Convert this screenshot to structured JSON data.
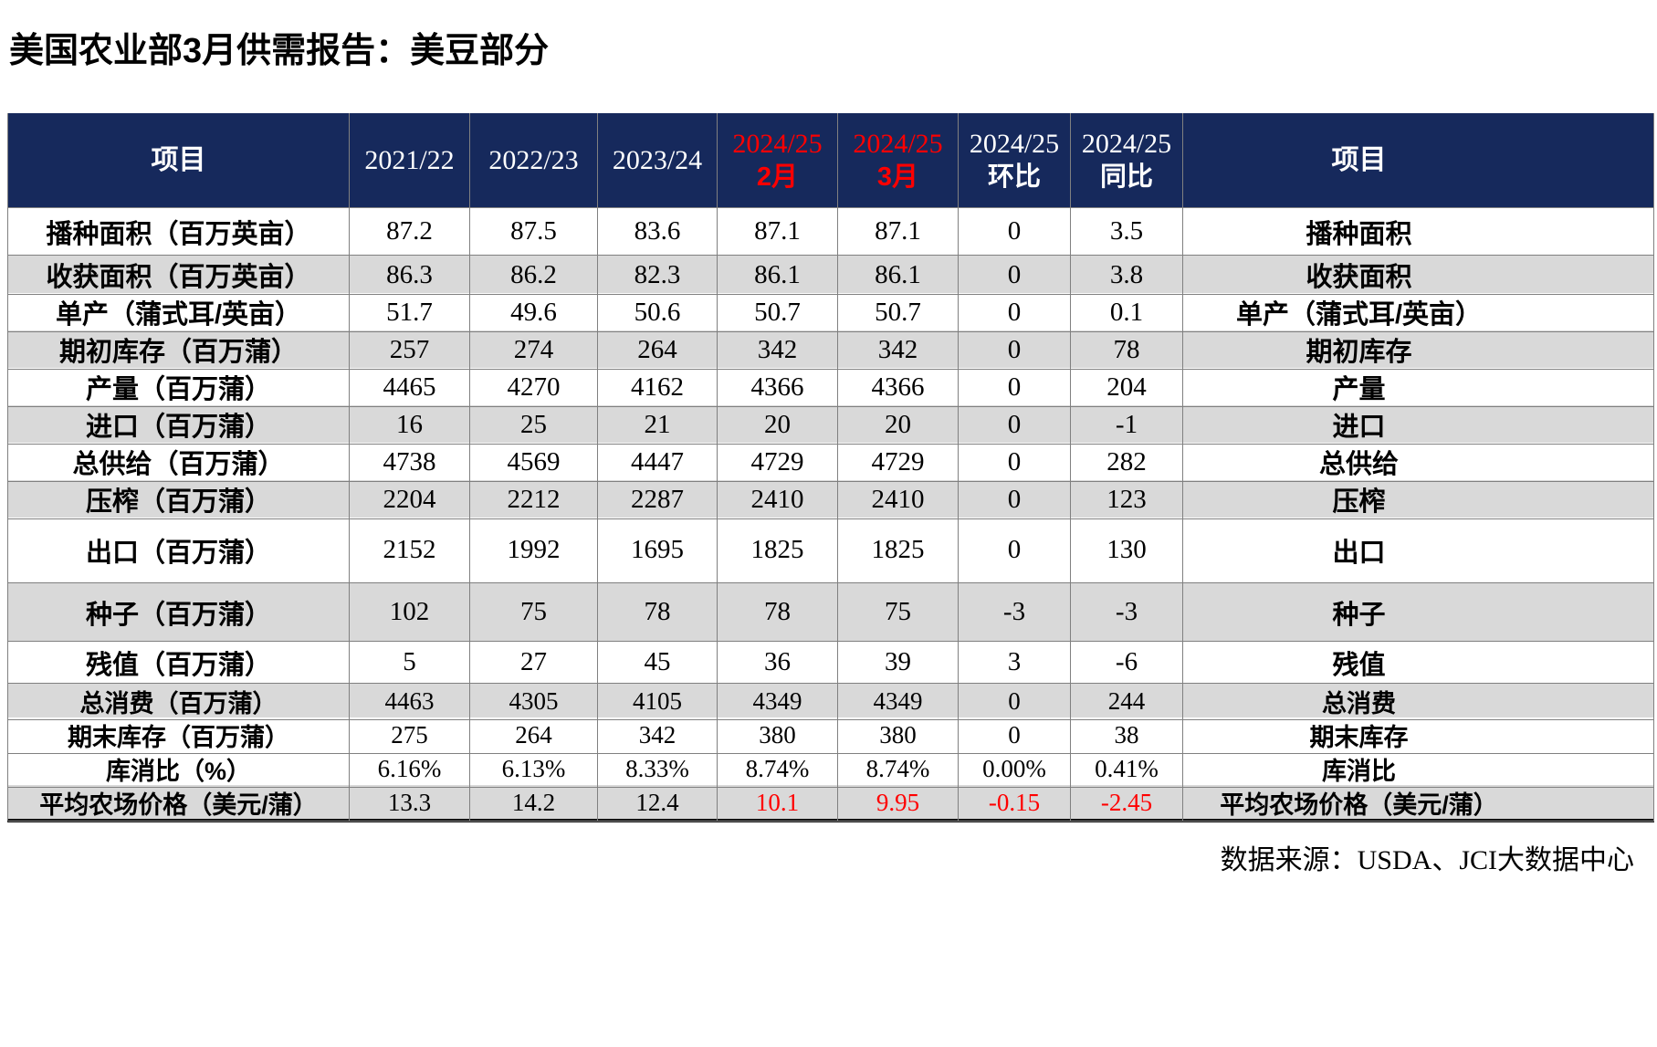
{
  "page": {
    "title": "美国农业部3月供需报告：美豆部分",
    "source_note": "数据来源：USDA、JCI大数据中心"
  },
  "colors": {
    "header_bg": "#16295C",
    "highlight_red": "#FF0000",
    "shaded_row_bg": "#D9D9D9",
    "grid_line": "#808080"
  },
  "table": {
    "header": {
      "item_left": "项目",
      "item_right": "项目",
      "value_columns": [
        {
          "line1": "2021/22",
          "line2": "",
          "red": false
        },
        {
          "line1": "2022/23",
          "line2": "",
          "red": false
        },
        {
          "line1": "2023/24",
          "line2": "",
          "red": false
        },
        {
          "line1": "2024/25",
          "line2": "2月",
          "red": true
        },
        {
          "line1": "2024/25",
          "line2": "3月",
          "red": true
        },
        {
          "line1": "2024/25",
          "line2": "环比",
          "red": false
        },
        {
          "line1": "2024/25",
          "line2": "同比",
          "red": false
        }
      ]
    },
    "rows": [
      {
        "item": "播种面积（百万英亩）",
        "item_right": "播种面积",
        "values": [
          "87.2",
          "87.5",
          "83.6",
          "87.1",
          "87.1",
          "0",
          "3.5"
        ],
        "red_value_indices": []
      },
      {
        "item": "收获面积（百万英亩）",
        "item_right": "收获面积",
        "values": [
          "86.3",
          "86.2",
          "82.3",
          "86.1",
          "86.1",
          "0",
          "3.8"
        ],
        "red_value_indices": []
      },
      {
        "item": "单产（蒲式耳/英亩）",
        "item_right": "单产（蒲式耳/英亩）",
        "values": [
          "51.7",
          "49.6",
          "50.6",
          "50.7",
          "50.7",
          "0",
          "0.1"
        ],
        "red_value_indices": []
      },
      {
        "item": "期初库存（百万蒲）",
        "item_right": "期初库存",
        "values": [
          "257",
          "274",
          "264",
          "342",
          "342",
          "0",
          "78"
        ],
        "red_value_indices": []
      },
      {
        "item": "产量（百万蒲）",
        "item_right": "产量",
        "values": [
          "4465",
          "4270",
          "4162",
          "4366",
          "4366",
          "0",
          "204"
        ],
        "red_value_indices": []
      },
      {
        "item": "进口（百万蒲）",
        "item_right": "进口",
        "values": [
          "16",
          "25",
          "21",
          "20",
          "20",
          "0",
          "-1"
        ],
        "red_value_indices": []
      },
      {
        "item": "总供给（百万蒲）",
        "item_right": "总供给",
        "values": [
          "4738",
          "4569",
          "4447",
          "4729",
          "4729",
          "0",
          "282"
        ],
        "red_value_indices": []
      },
      {
        "item": "压榨（百万蒲）",
        "item_right": "压榨",
        "values": [
          "2204",
          "2212",
          "2287",
          "2410",
          "2410",
          "0",
          "123"
        ],
        "red_value_indices": []
      },
      {
        "item": "出口（百万蒲）",
        "item_right": "出口",
        "values": [
          "2152",
          "1992",
          "1695",
          "1825",
          "1825",
          "0",
          "130"
        ],
        "red_value_indices": []
      },
      {
        "item": "种子（百万蒲）",
        "item_right": "种子",
        "values": [
          "102",
          "75",
          "78",
          "78",
          "75",
          "-3",
          "-3"
        ],
        "red_value_indices": []
      },
      {
        "item": "残值（百万蒲）",
        "item_right": "残值",
        "values": [
          "5",
          "27",
          "45",
          "36",
          "39",
          "3",
          "-6"
        ],
        "red_value_indices": []
      },
      {
        "item": "总消费（百万蒲）",
        "item_right": "总消费",
        "values": [
          "4463",
          "4305",
          "4105",
          "4349",
          "4349",
          "0",
          "244"
        ],
        "red_value_indices": []
      },
      {
        "item": "期末库存（百万蒲）",
        "item_right": "期末库存",
        "values": [
          "275",
          "264",
          "342",
          "380",
          "380",
          "0",
          "38"
        ],
        "red_value_indices": []
      },
      {
        "item": "库消比（%）",
        "item_right": "库消比",
        "values": [
          "6.16%",
          "6.13%",
          "8.33%",
          "8.74%",
          "8.74%",
          "0.00%",
          "0.41%"
        ],
        "red_value_indices": []
      },
      {
        "item": "平均农场价格（美元/蒲）",
        "item_right": "平均农场价格（美元/蒲）",
        "values": [
          "13.3",
          "14.2",
          "12.4",
          "10.1",
          "9.95",
          "-0.15",
          "-2.45"
        ],
        "red_value_indices": [
          3,
          4,
          5,
          6
        ]
      }
    ]
  }
}
